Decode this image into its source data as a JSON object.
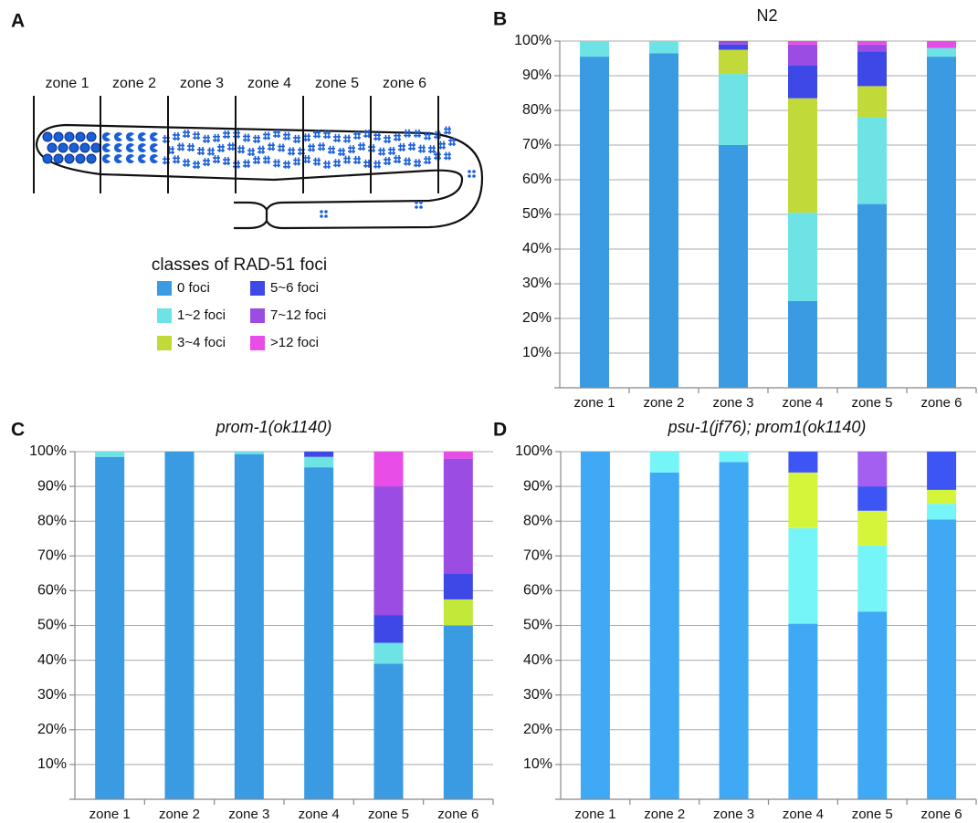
{
  "diagram": {
    "panel": "A",
    "zones": [
      "zone 1",
      "zone 2",
      "zone 3",
      "zone 4",
      "zone 5",
      "zone 6"
    ],
    "legend_title": "classes of RAD-51 foci"
  },
  "chart_data": [
    {
      "type": "bar",
      "stacked": true,
      "panel": "B",
      "title": "N2",
      "title_italic": false,
      "categories": [
        "zone 1",
        "zone 2",
        "zone 3",
        "zone 4",
        "zone 5",
        "zone 6"
      ],
      "series": [
        {
          "name": "0 foci",
          "color": "#3a9be3",
          "values": [
            95.5,
            96.5,
            70,
            25,
            53,
            95.5
          ]
        },
        {
          "name": "1~2 foci",
          "color": "#6de3e5",
          "values": [
            4.5,
            3.5,
            20.5,
            25.5,
            25,
            2.5
          ]
        },
        {
          "name": "3~4 foci",
          "color": "#c2d93a",
          "values": [
            0,
            0,
            7,
            33,
            9,
            0
          ]
        },
        {
          "name": "5~6 foci",
          "color": "#3d48e6",
          "values": [
            0,
            0,
            1.5,
            9.5,
            10,
            0
          ]
        },
        {
          "name": "7~12 foci",
          "color": "#9b4de3",
          "values": [
            0,
            0,
            1,
            6,
            2,
            0
          ]
        },
        {
          "name": ">12 foci",
          "color": "#e84de8",
          "values": [
            0,
            0,
            0,
            1,
            1,
            2
          ]
        }
      ],
      "ylim": [
        0,
        100
      ],
      "yticks": [
        {
          "value": 10,
          "label": "10%"
        },
        {
          "value": 20,
          "label": "20%"
        },
        {
          "value": 30,
          "label": "30%"
        },
        {
          "value": 40,
          "label": "40%"
        },
        {
          "value": 50,
          "label": "50%"
        },
        {
          "value": 60,
          "label": "60%"
        },
        {
          "value": 70,
          "label": "70%"
        },
        {
          "value": 80,
          "label": "80%"
        },
        {
          "value": 90,
          "label": "90%"
        },
        {
          "value": 100,
          "label": "100%"
        }
      ],
      "grid": true
    },
    {
      "type": "bar",
      "stacked": true,
      "panel": "C",
      "title": "prom-1(ok1140)",
      "title_italic": true,
      "categories": [
        "zone 1",
        "zone 2",
        "zone 3",
        "zone 4",
        "zone 5",
        "zone 6"
      ],
      "series": [
        {
          "name": "0 foci",
          "color": "#3a9be3",
          "values": [
            98.5,
            100,
            99.3,
            95.5,
            39,
            50
          ]
        },
        {
          "name": "1~2 foci",
          "color": "#6de3e5",
          "values": [
            1.5,
            0,
            0.7,
            3,
            6,
            0
          ]
        },
        {
          "name": "3~4 foci",
          "color": "#c2e83a",
          "values": [
            0,
            0,
            0,
            0,
            0,
            7.5
          ]
        },
        {
          "name": "5~6 foci",
          "color": "#3d48e6",
          "values": [
            0,
            0,
            0,
            1.5,
            8,
            7.5
          ]
        },
        {
          "name": "7~12 foci",
          "color": "#9b4de3",
          "values": [
            0,
            0,
            0,
            0,
            37,
            33
          ]
        },
        {
          "name": ">12 foci",
          "color": "#e84de8",
          "values": [
            0,
            0,
            0,
            0,
            10,
            2
          ]
        }
      ],
      "ylim": [
        0,
        100
      ],
      "yticks": [
        {
          "value": 10,
          "label": "10%"
        },
        {
          "value": 20,
          "label": "20%"
        },
        {
          "value": 30,
          "label": "30%"
        },
        {
          "value": 40,
          "label": "40%"
        },
        {
          "value": 50,
          "label": "50%"
        },
        {
          "value": 60,
          "label": "60%"
        },
        {
          "value": 70,
          "label": "70%"
        },
        {
          "value": 80,
          "label": "80%"
        },
        {
          "value": 90,
          "label": "90%"
        },
        {
          "value": 100,
          "label": "100%"
        }
      ],
      "grid": true
    },
    {
      "type": "bar",
      "stacked": true,
      "panel": "D",
      "title": "psu-1(jf76); prom1(ok1140)",
      "title_italic": true,
      "categories": [
        "zone 1",
        "zone 2",
        "zone 3",
        "zone 4",
        "zone 5",
        "zone 6"
      ],
      "series": [
        {
          "name": "0 foci",
          "color": "#3fa9f5",
          "values": [
            100,
            94,
            97,
            50.5,
            54,
            80.5
          ]
        },
        {
          "name": "1~2 foci",
          "color": "#76f5f9",
          "values": [
            0,
            6,
            3,
            27.5,
            19,
            4.5
          ]
        },
        {
          "name": "3~4 foci",
          "color": "#d5f53a",
          "values": [
            0,
            0,
            0,
            16,
            10,
            4
          ]
        },
        {
          "name": "5~6 foci",
          "color": "#3d55f5",
          "values": [
            0,
            0,
            0,
            6,
            7,
            11
          ]
        },
        {
          "name": "7~12 foci",
          "color": "#a45ef0",
          "values": [
            0,
            0,
            0,
            0,
            10,
            0
          ]
        },
        {
          "name": ">12 foci",
          "color": "#f13ef4",
          "values": [
            0,
            0,
            0,
            0,
            0,
            0
          ]
        }
      ],
      "ylim": [
        0,
        100
      ],
      "yticks": [
        {
          "value": 10,
          "label": "10%"
        },
        {
          "value": 20,
          "label": "20%"
        },
        {
          "value": 30,
          "label": "30%"
        },
        {
          "value": 40,
          "label": "40%"
        },
        {
          "value": 50,
          "label": "50%"
        },
        {
          "value": 60,
          "label": "60%"
        },
        {
          "value": 70,
          "label": "70%"
        },
        {
          "value": 80,
          "label": "80%"
        },
        {
          "value": 90,
          "label": "90%"
        },
        {
          "value": 100,
          "label": "100%"
        }
      ],
      "grid": true
    }
  ]
}
